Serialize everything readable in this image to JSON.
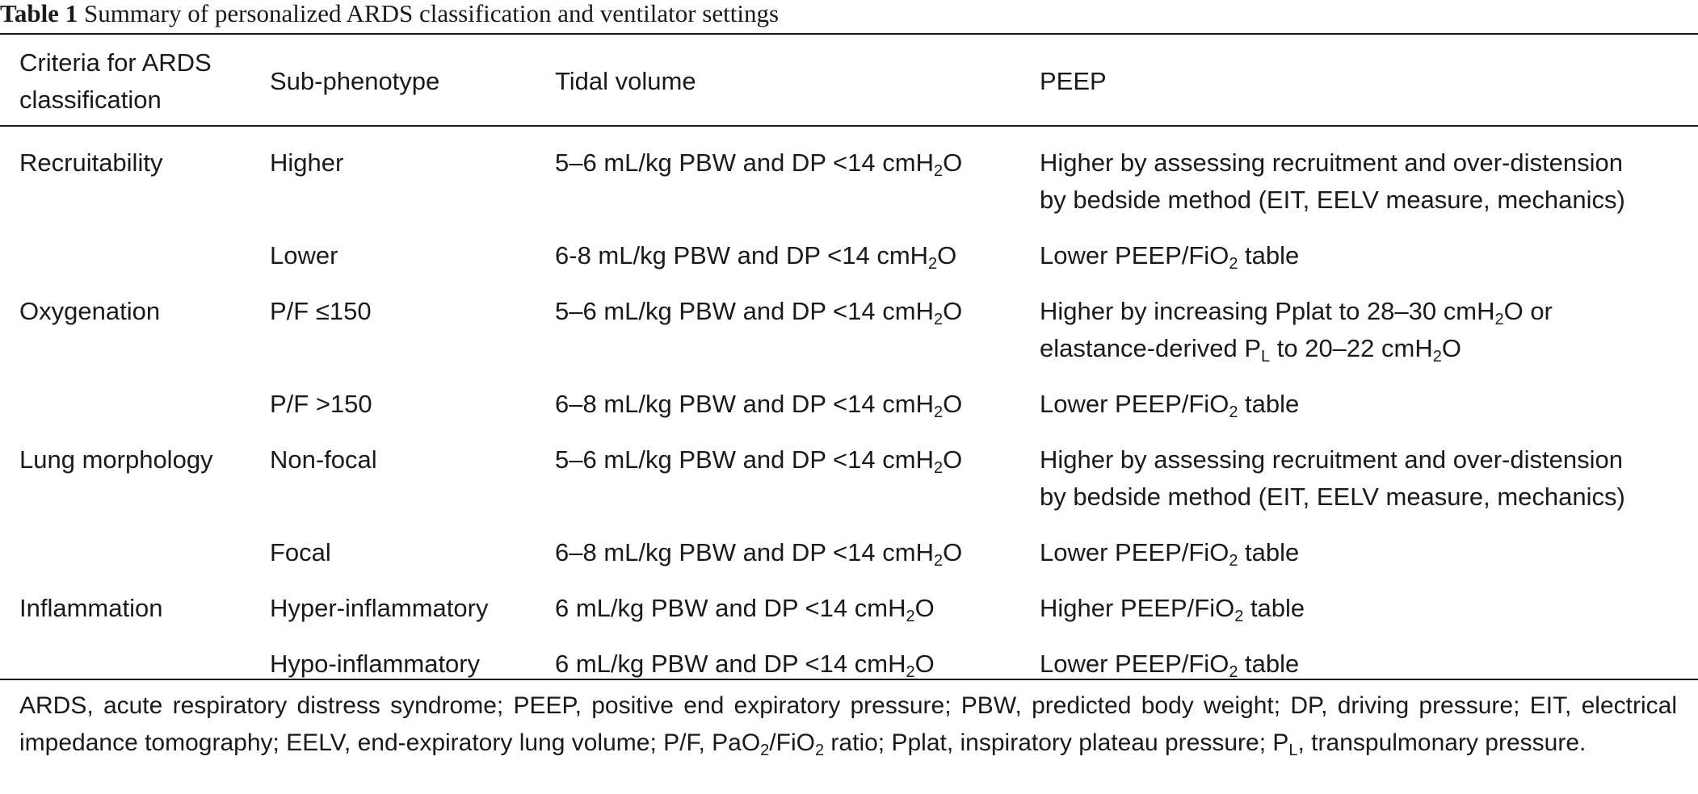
{
  "caption": {
    "label": "Table 1",
    "text": "Summary of personalized ARDS classification and ventilator settings"
  },
  "table": {
    "headers": {
      "criteria_line1": "Criteria for ARDS",
      "criteria_line2": "classification",
      "subphenotype": "Sub-phenotype",
      "tidal_volume": "Tidal volume",
      "peep": "PEEP"
    },
    "rows": [
      {
        "criteria": "Recruitability",
        "sub": "Higher",
        "tv_pre": "5–6 mL/kg PBW and DP <14 cmH",
        "tv_sub": "2",
        "tv_post": "O",
        "peep_line1": "Higher by assessing recruitment and over-distension",
        "peep_line2": "by bedside method (EIT, EELV measure, mechanics)"
      },
      {
        "criteria": "",
        "sub": "Lower",
        "tv_pre": "6-8 mL/kg PBW and DP <14 cmH",
        "tv_sub": "2",
        "tv_post": "O",
        "peep_pre": "Lower PEEP/FiO",
        "peep_sub": "2",
        "peep_post": " table"
      },
      {
        "criteria": "Oxygenation",
        "sub": "P/F ≤150",
        "tv_pre": "5–6 mL/kg PBW and DP <14 cmH",
        "tv_sub": "2",
        "tv_post": "O",
        "peep_l1_pre": "Higher by increasing Pplat to 28–30 cmH",
        "peep_l1_sub": "2",
        "peep_l1_post": "O or",
        "peep_l2_pre": "elastance-derived P",
        "peep_l2_sub": "L",
        "peep_l2_mid": " to 20–22 cmH",
        "peep_l2_sub2": "2",
        "peep_l2_post": "O"
      },
      {
        "criteria": "",
        "sub": "P/F >150",
        "tv_pre": "6–8 mL/kg PBW and DP <14 cmH",
        "tv_sub": "2",
        "tv_post": "O",
        "peep_pre": "Lower PEEP/FiO",
        "peep_sub": "2",
        "peep_post": " table"
      },
      {
        "criteria": "Lung morphology",
        "sub": "Non-focal",
        "tv_pre": "5–6 mL/kg PBW and DP <14 cmH",
        "tv_sub": "2",
        "tv_post": "O",
        "peep_line1": "Higher by assessing recruitment and over-distension",
        "peep_line2": "by bedside method (EIT, EELV measure, mechanics)"
      },
      {
        "criteria": "",
        "sub": "Focal",
        "tv_pre": "6–8 mL/kg PBW and DP <14 cmH",
        "tv_sub": "2",
        "tv_post": "O",
        "peep_pre": "Lower PEEP/FiO",
        "peep_sub": "2",
        "peep_post": " table"
      },
      {
        "criteria": "Inflammation",
        "sub": "Hyper-inflammatory",
        "tv_pre": "6 mL/kg PBW and DP <14 cmH",
        "tv_sub": "2",
        "tv_post": "O",
        "peep_pre": "Higher PEEP/FiO",
        "peep_sub": "2",
        "peep_post": " table"
      },
      {
        "criteria": "",
        "sub": "Hypo-inflammatory",
        "tv_pre": "6 mL/kg PBW and DP <14 cmH",
        "tv_sub": "2",
        "tv_post": "O",
        "peep_pre": "Lower PEEP/FiO",
        "peep_sub": "2",
        "peep_post": " table"
      }
    ]
  },
  "footnote": {
    "p1": "ARDS, acute respiratory distress syndrome; PEEP, positive end expiratory pressure; PBW, predicted body weight; DP, driving pressure; EIT, electrical impedance tomography; EELV, end-expiratory lung volume; P/F, PaO",
    "s1": "2",
    "p2": "/FiO",
    "s2": "2",
    "p3": " ratio; Pplat, inspiratory plateau pressure; P",
    "s3": "L",
    "p4": ", transpulmonary pressure."
  }
}
